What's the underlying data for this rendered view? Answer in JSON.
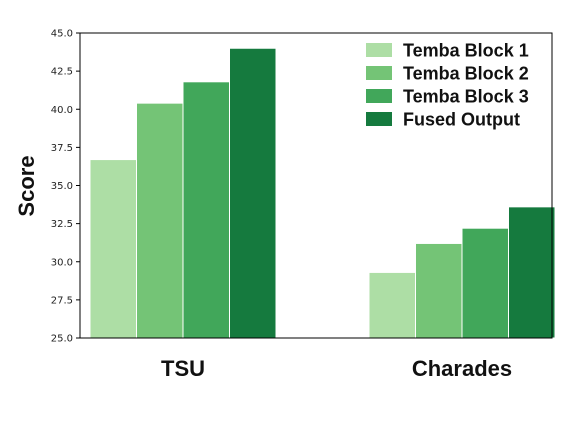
{
  "chart_data": {
    "type": "bar",
    "categories": [
      "TSU",
      "Charades"
    ],
    "series": [
      {
        "name": "Temba Block 1",
        "values": [
          36.7,
          29.3
        ],
        "color": "#addea5"
      },
      {
        "name": "Temba Block 2",
        "values": [
          40.4,
          31.2
        ],
        "color": "#74c476"
      },
      {
        "name": "Temba Block 3",
        "values": [
          41.8,
          32.2
        ],
        "color": "#41a75a"
      },
      {
        "name": "Fused Output",
        "values": [
          44.0,
          33.6
        ],
        "color": "#157a3e"
      }
    ],
    "ylabel": "Score",
    "ylim": [
      25.0,
      45.0
    ],
    "yticks": [
      "25.0",
      "27.5",
      "30.0",
      "32.5",
      "35.0",
      "37.5",
      "40.0",
      "42.5",
      "45.0"
    ],
    "grid": false,
    "legend": "top-right"
  }
}
